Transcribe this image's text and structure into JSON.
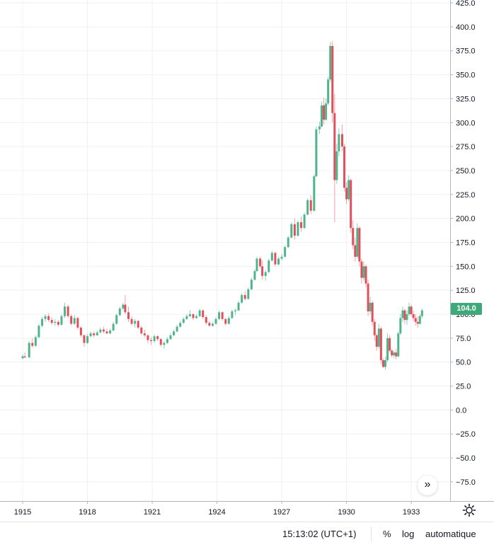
{
  "chart_data": {
    "type": "candlestick",
    "title": "",
    "xlabel": "",
    "ylabel": "",
    "x_ticks": [
      "1915",
      "1918",
      "1921",
      "1924",
      "1927",
      "1930",
      "1933"
    ],
    "y_ticks": [
      "425.0",
      "400.0",
      "375.0",
      "350.0",
      "325.0",
      "300.0",
      "275.0",
      "250.0",
      "225.0",
      "200.0",
      "175.0",
      "150.0",
      "125.0",
      "100.0",
      "75.0",
      "50.0",
      "25.0",
      "0.0",
      "−25.0",
      "−50.0",
      "−75.0"
    ],
    "ylim": [
      -95,
      428
    ],
    "xlim": [
      1913.95,
      1934.8
    ],
    "last_price": "104.0",
    "colors": {
      "up": "#26a69a",
      "up_body": "#4fb48a",
      "down": "#ef5350",
      "down_body": "#e0505c",
      "grid": "#eef0f3",
      "axis": "#b2b5be",
      "tag": "#3ea979"
    },
    "series": [
      {
        "values": [
          [
            1915.0,
            54,
            58,
            53,
            56
          ],
          [
            1915.1,
            56,
            60,
            54,
            55
          ],
          [
            1915.3,
            55,
            72,
            54,
            70
          ],
          [
            1915.45,
            70,
            75,
            65,
            67
          ],
          [
            1915.6,
            67,
            78,
            66,
            76
          ],
          [
            1915.75,
            76,
            90,
            75,
            88
          ],
          [
            1915.9,
            88,
            97,
            86,
            95
          ],
          [
            1916.05,
            95,
            100,
            92,
            98
          ],
          [
            1916.2,
            98,
            101,
            92,
            94
          ],
          [
            1916.35,
            94,
            97,
            89,
            91
          ],
          [
            1916.5,
            91,
            95,
            88,
            92
          ],
          [
            1916.65,
            92,
            94,
            87,
            89
          ],
          [
            1916.8,
            89,
            100,
            88,
            98
          ],
          [
            1916.95,
            98,
            112,
            96,
            108
          ],
          [
            1917.1,
            108,
            110,
            96,
            98
          ],
          [
            1917.25,
            98,
            100,
            88,
            90
          ],
          [
            1917.4,
            90,
            99,
            89,
            96
          ],
          [
            1917.55,
            96,
            97,
            84,
            86
          ],
          [
            1917.7,
            86,
            88,
            76,
            78
          ],
          [
            1917.85,
            78,
            79,
            66,
            70
          ],
          [
            1918.0,
            70,
            79,
            69,
            77
          ],
          [
            1918.15,
            77,
            82,
            76,
            80
          ],
          [
            1918.3,
            80,
            82,
            76,
            78
          ],
          [
            1918.45,
            78,
            83,
            77,
            81
          ],
          [
            1918.6,
            81,
            86,
            80,
            84
          ],
          [
            1918.75,
            84,
            87,
            80,
            82
          ],
          [
            1918.9,
            82,
            85,
            79,
            80
          ],
          [
            1919.05,
            80,
            85,
            79,
            83
          ],
          [
            1919.2,
            83,
            92,
            82,
            90
          ],
          [
            1919.35,
            90,
            101,
            89,
            99
          ],
          [
            1919.5,
            99,
            108,
            98,
            106
          ],
          [
            1919.65,
            106,
            112,
            104,
            110
          ],
          [
            1919.75,
            110,
            120,
            100,
            102
          ],
          [
            1919.9,
            102,
            108,
            92,
            95
          ],
          [
            1920.05,
            95,
            98,
            88,
            90
          ],
          [
            1920.2,
            90,
            95,
            86,
            93
          ],
          [
            1920.35,
            93,
            94,
            84,
            86
          ],
          [
            1920.5,
            86,
            88,
            78,
            80
          ],
          [
            1920.65,
            80,
            84,
            76,
            78
          ],
          [
            1920.8,
            78,
            79,
            70,
            73
          ],
          [
            1920.95,
            73,
            76,
            68,
            72
          ],
          [
            1921.1,
            72,
            79,
            70,
            77
          ],
          [
            1921.25,
            77,
            78,
            72,
            74
          ],
          [
            1921.4,
            74,
            75,
            66,
            68
          ],
          [
            1921.55,
            68,
            72,
            64,
            70
          ],
          [
            1921.7,
            70,
            76,
            69,
            74
          ],
          [
            1921.85,
            74,
            80,
            73,
            78
          ],
          [
            1922.0,
            78,
            84,
            77,
            82
          ],
          [
            1922.15,
            82,
            89,
            81,
            87
          ],
          [
            1922.3,
            87,
            93,
            86,
            91
          ],
          [
            1922.45,
            91,
            97,
            90,
            95
          ],
          [
            1922.6,
            95,
            100,
            94,
            98
          ],
          [
            1922.75,
            98,
            104,
            97,
            100
          ],
          [
            1922.9,
            100,
            101,
            94,
            96
          ],
          [
            1923.05,
            96,
            100,
            95,
            98
          ],
          [
            1923.2,
            98,
            106,
            97,
            104
          ],
          [
            1923.35,
            104,
            105,
            95,
            97
          ],
          [
            1923.5,
            97,
            99,
            89,
            91
          ],
          [
            1923.65,
            91,
            93,
            87,
            88
          ],
          [
            1923.8,
            88,
            92,
            87,
            90
          ],
          [
            1923.95,
            90,
            97,
            89,
            95
          ],
          [
            1924.1,
            95,
            104,
            94,
            102
          ],
          [
            1924.25,
            102,
            103,
            93,
            95
          ],
          [
            1924.4,
            95,
            96,
            88,
            90
          ],
          [
            1924.55,
            90,
            98,
            89,
            96
          ],
          [
            1924.7,
            96,
            105,
            95,
            103
          ],
          [
            1924.85,
            103,
            106,
            99,
            104
          ],
          [
            1925.0,
            104,
            114,
            103,
            112
          ],
          [
            1925.15,
            112,
            122,
            111,
            120
          ],
          [
            1925.3,
            120,
            124,
            114,
            116
          ],
          [
            1925.45,
            116,
            128,
            115,
            126
          ],
          [
            1925.6,
            126,
            138,
            125,
            136
          ],
          [
            1925.75,
            136,
            147,
            135,
            145
          ],
          [
            1925.85,
            145,
            160,
            144,
            158
          ],
          [
            1926.0,
            158,
            160,
            148,
            150
          ],
          [
            1926.1,
            150,
            156,
            136,
            140
          ],
          [
            1926.25,
            140,
            146,
            135,
            144
          ],
          [
            1926.4,
            144,
            158,
            143,
            156
          ],
          [
            1926.55,
            156,
            166,
            155,
            164
          ],
          [
            1926.7,
            164,
            165,
            150,
            152
          ],
          [
            1926.85,
            152,
            160,
            151,
            158
          ],
          [
            1927.0,
            158,
            163,
            156,
            160
          ],
          [
            1927.15,
            160,
            172,
            159,
            170
          ],
          [
            1927.3,
            170,
            182,
            169,
            180
          ],
          [
            1927.45,
            180,
            196,
            179,
            194
          ],
          [
            1927.6,
            194,
            200,
            178,
            182
          ],
          [
            1927.75,
            182,
            198,
            181,
            196
          ],
          [
            1927.9,
            196,
            202,
            186,
            190
          ],
          [
            1928.05,
            190,
            206,
            189,
            204
          ],
          [
            1928.2,
            204,
            221,
            203,
            219
          ],
          [
            1928.35,
            219,
            224,
            205,
            208
          ],
          [
            1928.5,
            208,
            246,
            207,
            244
          ],
          [
            1928.6,
            244,
            296,
            243,
            293
          ],
          [
            1928.75,
            293,
            301,
            288,
            296
          ],
          [
            1928.85,
            296,
            322,
            295,
            318
          ],
          [
            1928.95,
            318,
            326,
            298,
            303
          ],
          [
            1929.05,
            303,
            325,
            302,
            320
          ],
          [
            1929.15,
            320,
            348,
            318,
            345
          ],
          [
            1929.25,
            345,
            384,
            342,
            380
          ],
          [
            1929.35,
            380,
            385,
            300,
            310
          ],
          [
            1929.45,
            310,
            330,
            196,
            240
          ],
          [
            1929.55,
            240,
            278,
            236,
            270
          ],
          [
            1929.65,
            270,
            294,
            265,
            288
          ],
          [
            1929.8,
            288,
            298,
            270,
            275
          ],
          [
            1929.9,
            275,
            278,
            228,
            232
          ],
          [
            1930.0,
            232,
            238,
            215,
            220
          ],
          [
            1930.1,
            220,
            245,
            218,
            240
          ],
          [
            1930.2,
            240,
            242,
            185,
            190
          ],
          [
            1930.3,
            190,
            198,
            168,
            172
          ],
          [
            1930.4,
            172,
            180,
            155,
            160
          ],
          [
            1930.5,
            160,
            195,
            158,
            190
          ],
          [
            1930.6,
            190,
            192,
            150,
            155
          ],
          [
            1930.7,
            155,
            158,
            132,
            138
          ],
          [
            1930.8,
            138,
            155,
            135,
            150
          ],
          [
            1930.9,
            150,
            152,
            128,
            132
          ],
          [
            1931.0,
            132,
            136,
            98,
            103
          ],
          [
            1931.1,
            103,
            118,
            100,
            112
          ],
          [
            1931.2,
            112,
            114,
            88,
            92
          ],
          [
            1931.3,
            92,
            95,
            72,
            78
          ],
          [
            1931.4,
            78,
            80,
            62,
            66
          ],
          [
            1931.5,
            66,
            90,
            64,
            85
          ],
          [
            1931.6,
            85,
            87,
            48,
            52
          ],
          [
            1931.7,
            52,
            54,
            44,
            45
          ],
          [
            1931.8,
            45,
            56,
            42,
            52
          ],
          [
            1931.9,
            52,
            80,
            50,
            75
          ],
          [
            1932.0,
            75,
            78,
            60,
            62
          ],
          [
            1932.1,
            62,
            64,
            55,
            57
          ],
          [
            1932.2,
            57,
            62,
            54,
            60
          ],
          [
            1932.3,
            60,
            64,
            53,
            56
          ],
          [
            1932.4,
            56,
            82,
            55,
            80
          ],
          [
            1932.5,
            80,
            100,
            78,
            96
          ],
          [
            1932.6,
            96,
            108,
            92,
            104
          ],
          [
            1932.7,
            104,
            106,
            90,
            94
          ],
          [
            1932.8,
            94,
            104,
            89,
            100
          ],
          [
            1932.9,
            100,
            112,
            98,
            108
          ],
          [
            1933.0,
            108,
            110,
            98,
            100
          ],
          [
            1933.1,
            100,
            104,
            93,
            96
          ],
          [
            1933.2,
            96,
            100,
            88,
            92
          ],
          [
            1933.3,
            92,
            98,
            86,
            90
          ],
          [
            1933.4,
            90,
            100,
            89,
            98
          ],
          [
            1933.5,
            98,
            106,
            96,
            104
          ]
        ]
      }
    ]
  },
  "status_bar": {
    "time": "15:13:02 (UTC+1)",
    "percent_label": "%",
    "log_label": "log",
    "auto_label": "automatique"
  },
  "controls": {
    "scroll_button_glyph": "»"
  }
}
